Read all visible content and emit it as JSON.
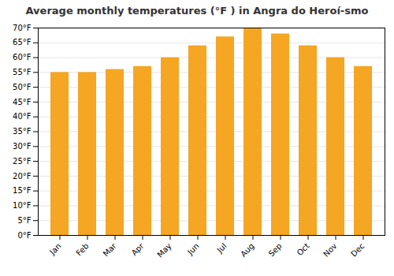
{
  "chart_data": {
    "type": "bar",
    "title": "Average monthly temperatures (°F ) in Angra do Heroí-smo",
    "categories": [
      "Jan",
      "Feb",
      "Mar",
      "Apr",
      "May",
      "Jun",
      "Jul",
      "Aug",
      "Sep",
      "Oct",
      "Nov",
      "Dec"
    ],
    "values": [
      55,
      55,
      56,
      57,
      60,
      64,
      67,
      70,
      68,
      64,
      60,
      57
    ],
    "color": "#F5A623",
    "ylim": [
      0,
      70
    ],
    "yticks": [
      {
        "value": 0,
        "label": "0°F"
      },
      {
        "value": 5,
        "label": "5°F"
      },
      {
        "value": 10,
        "label": "10°F"
      },
      {
        "value": 15,
        "label": "15°F"
      },
      {
        "value": 20,
        "label": "20°F"
      },
      {
        "value": 25,
        "label": "25°F"
      },
      {
        "value": 30,
        "label": "30°F"
      },
      {
        "value": 35,
        "label": "35°F"
      },
      {
        "value": 40,
        "label": "40°F"
      },
      {
        "value": 45,
        "label": "45°F"
      },
      {
        "value": 50,
        "label": "50°F"
      },
      {
        "value": 55,
        "label": "55°F"
      },
      {
        "value": 60,
        "label": "60°F"
      },
      {
        "value": 65,
        "label": "65°F"
      },
      {
        "value": 70,
        "label": "70°F"
      }
    ],
    "grid": true
  }
}
